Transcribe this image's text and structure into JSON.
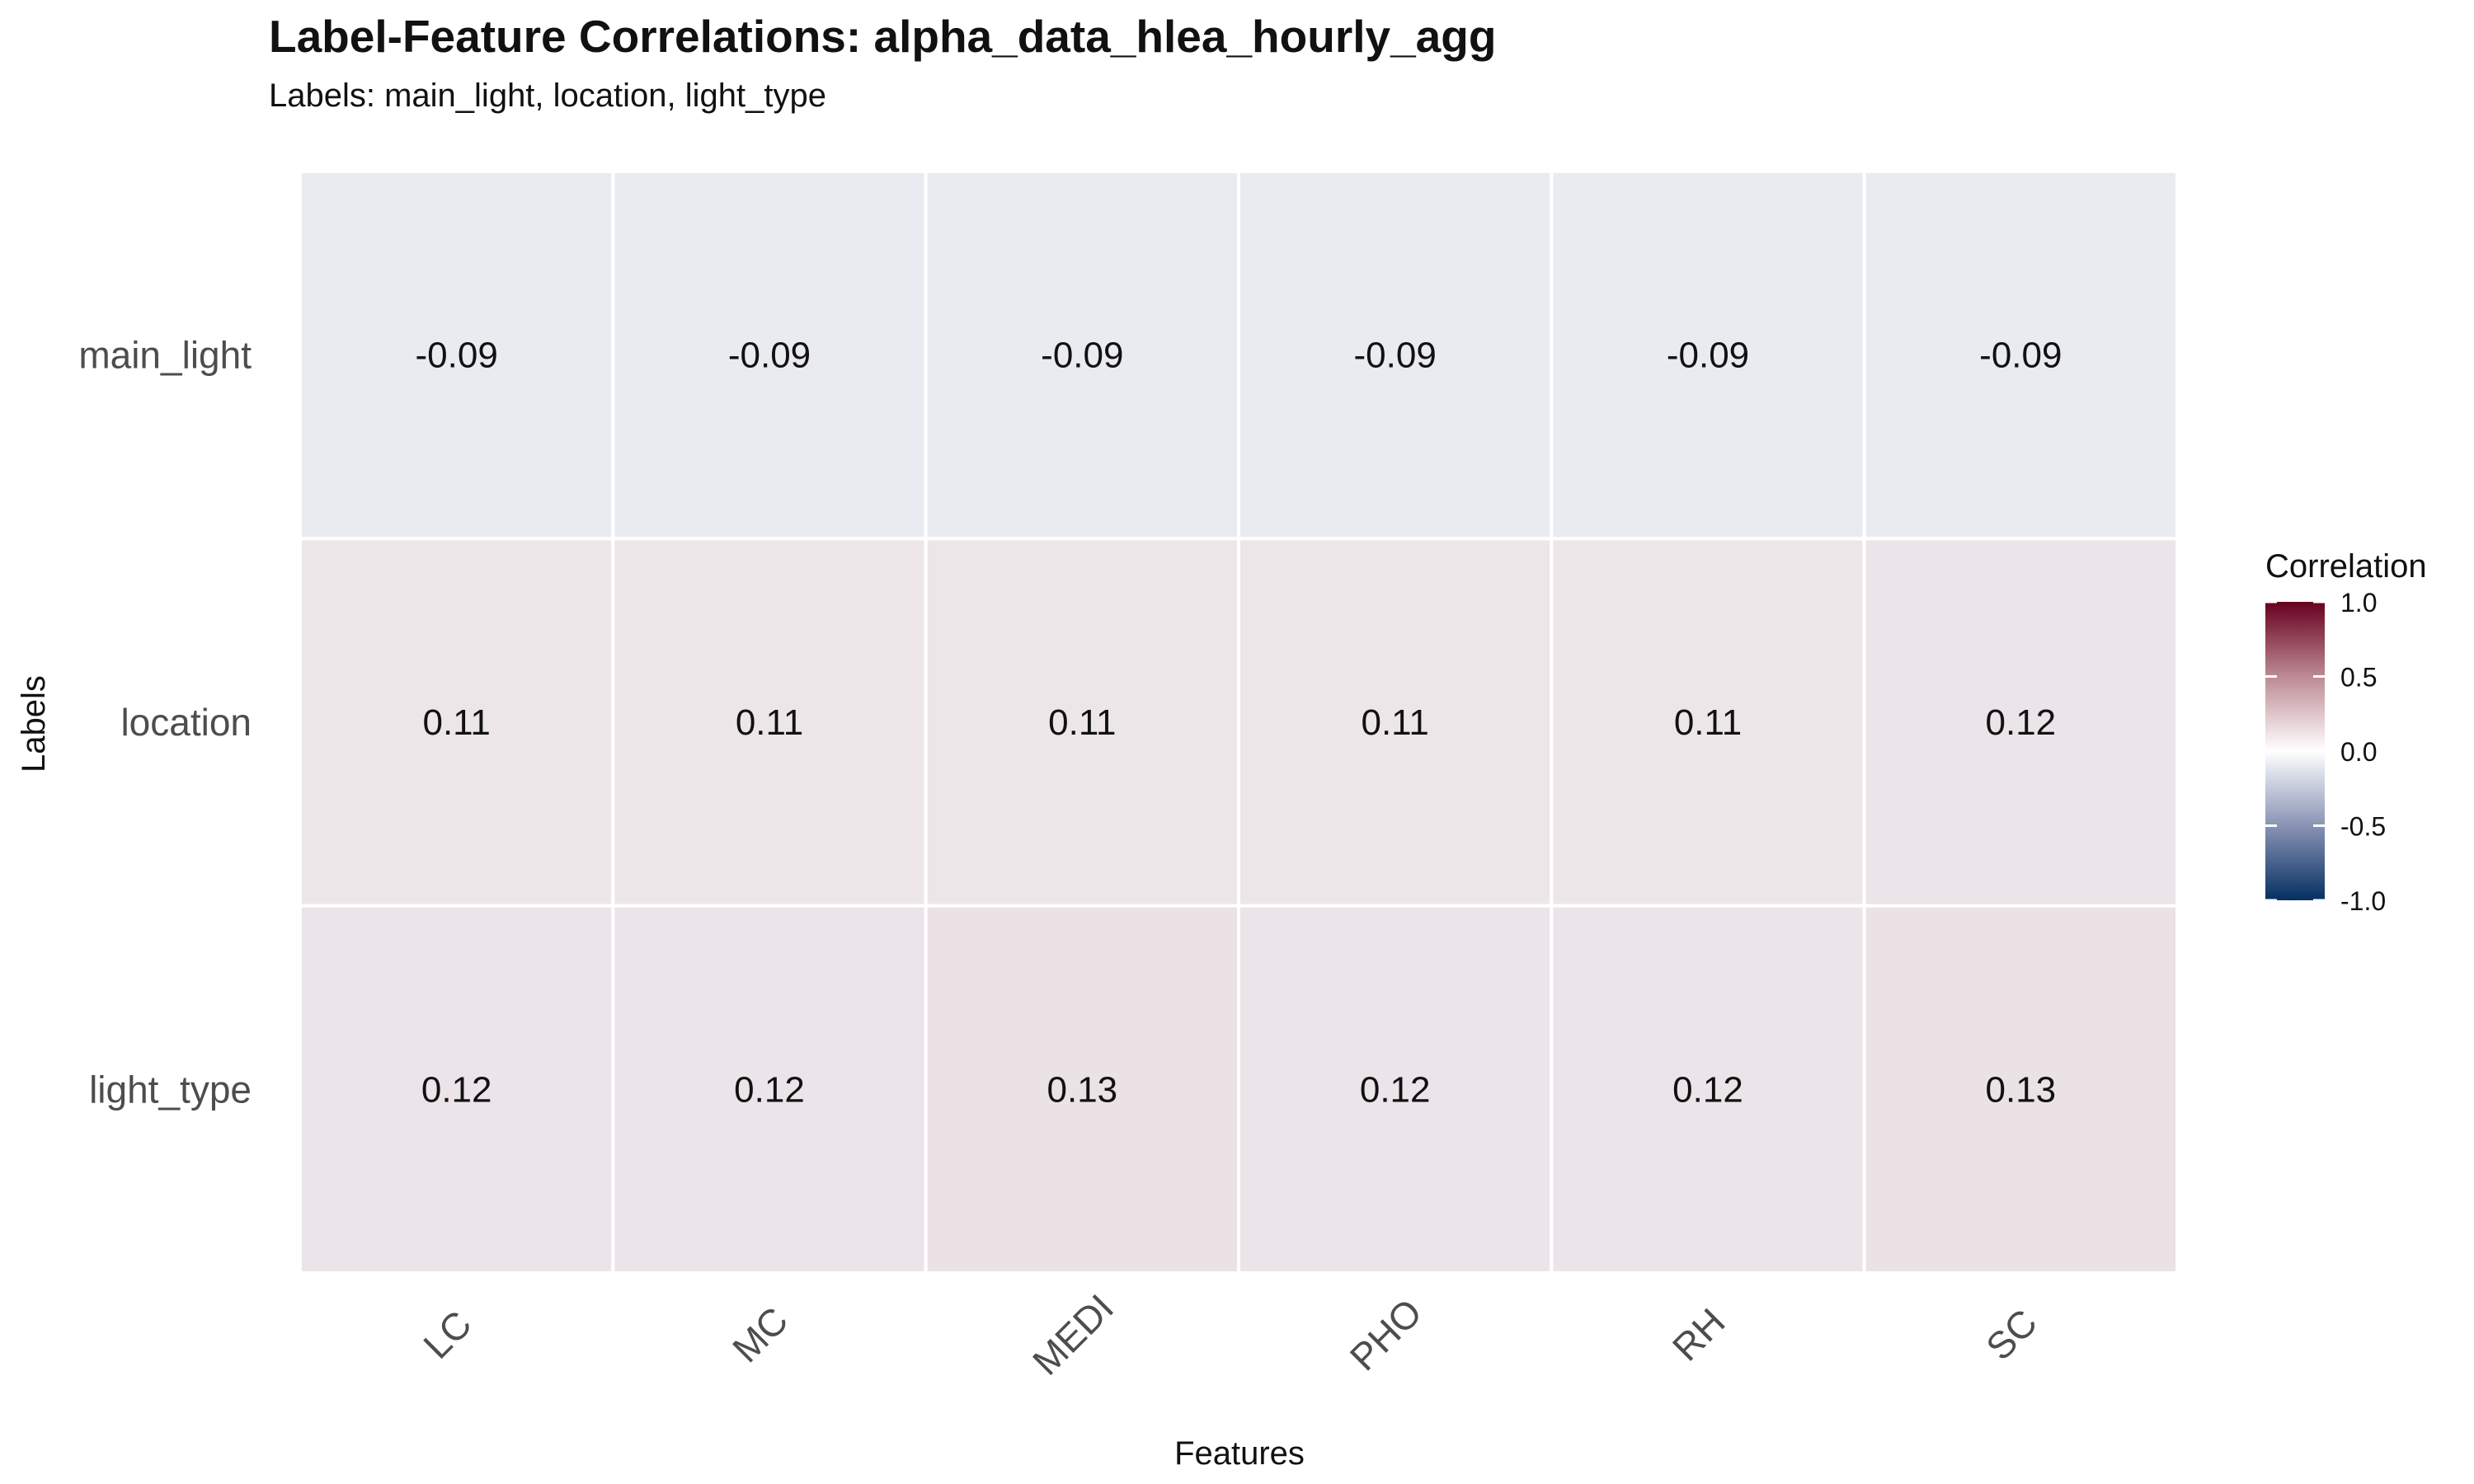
{
  "chart_data": {
    "type": "heatmap",
    "title": "Label-Feature Correlations: alpha_data_hlea_hourly_agg",
    "subtitle": "Labels: main_light, location, light_type",
    "xlabel": "Features",
    "ylabel": "Labels",
    "x_categories": [
      "LC",
      "MC",
      "MEDI",
      "PHO",
      "RH",
      "SC"
    ],
    "y_categories": [
      "main_light",
      "location",
      "light_type"
    ],
    "values": [
      [
        -0.09,
        -0.09,
        -0.09,
        -0.09,
        -0.09,
        -0.09
      ],
      [
        0.11,
        0.11,
        0.11,
        0.11,
        0.11,
        0.12
      ],
      [
        0.12,
        0.12,
        0.13,
        0.12,
        0.12,
        0.13
      ]
    ],
    "cell_labels": [
      [
        "-0.09",
        "-0.09",
        "-0.09",
        "-0.09",
        "-0.09",
        "-0.09"
      ],
      [
        "0.11",
        "0.11",
        "0.11",
        "0.11",
        "0.11",
        "0.12"
      ],
      [
        "0.12",
        "0.12",
        "0.13",
        "0.12",
        "0.12",
        "0.13"
      ]
    ],
    "legend": {
      "title": "Correlation",
      "placement": "right",
      "range": [
        -1,
        1
      ],
      "ticks": [
        1.0,
        0.5,
        0.0,
        -0.5,
        -1.0
      ],
      "tick_labels": [
        "1.0",
        "0.5",
        "0.0",
        "-0.5",
        "-1.0"
      ],
      "colors": {
        "low": "#1b3a6b",
        "mid": "#ffffff",
        "high": "#6b1323"
      }
    },
    "grid": false
  }
}
